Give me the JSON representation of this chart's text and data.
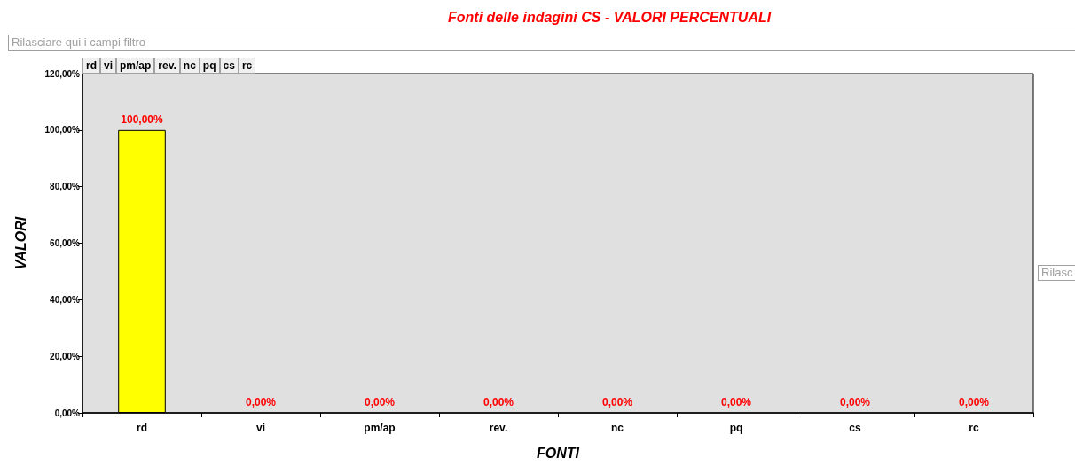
{
  "chart_data": {
    "type": "bar",
    "title": "Fonti delle indagini CS - VALORI PERCENTUALI",
    "xlabel": "FONTI",
    "ylabel": "VALORI",
    "categories": [
      "rd",
      "vi",
      "pm/ap",
      "rev.",
      "nc",
      "pq",
      "cs",
      "rc"
    ],
    "values": [
      100,
      0,
      0,
      0,
      0,
      0,
      0,
      0
    ],
    "color": "#ffff00",
    "value_labels": [
      "100,00%",
      "0,00%",
      "0,00%",
      "0,00%",
      "0,00%",
      "0,00%",
      "0,00%",
      "0,00%"
    ],
    "ylim": [
      0,
      120
    ],
    "yticks": [
      {
        "value": 0,
        "label": "0,00%"
      },
      {
        "value": 20,
        "label": "20,00%"
      },
      {
        "value": 40,
        "label": "40,00%"
      },
      {
        "value": 60,
        "label": "60,00%"
      },
      {
        "value": 80,
        "label": "80,00%"
      },
      {
        "value": 100,
        "label": "100,00%"
      },
      {
        "value": 120,
        "label": "120,00%"
      }
    ],
    "annotations": [
      "Rilasciare qui i campi filtro",
      "rd",
      "vi",
      "pm/ap",
      "rev.",
      "nc",
      "pq",
      "cs",
      "rc",
      "Rilasc"
    ]
  }
}
